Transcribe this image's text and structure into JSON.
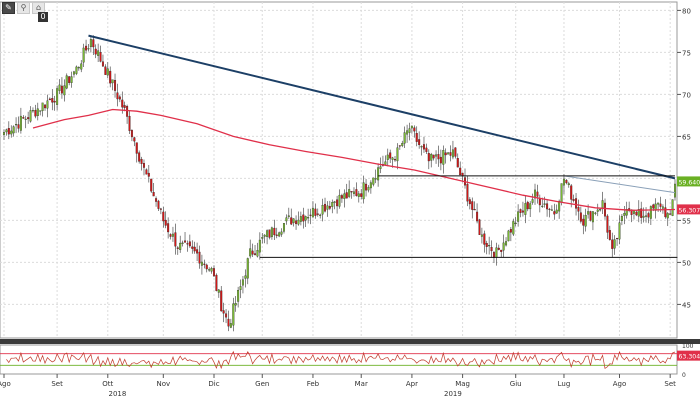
{
  "toolbar": {
    "buttons": [
      "pencil-icon",
      "wand-icon",
      "tag-icon"
    ],
    "zero_label": "0"
  },
  "chart_data": {
    "type": "candlestick",
    "title": "",
    "xlabel": "",
    "ylabel": "",
    "ylim": [
      41,
      81
    ],
    "yticks": [
      45,
      50,
      55,
      60,
      65,
      70,
      75,
      80
    ],
    "x_months": [
      {
        "label": "Ago",
        "idx": 0
      },
      {
        "label": "Set",
        "idx": 22
      },
      {
        "label": "Ott",
        "idx": 43
      },
      {
        "label": "Nov",
        "idx": 66
      },
      {
        "label": "Dic",
        "idx": 87
      },
      {
        "label": "Gen",
        "idx": 107
      },
      {
        "label": "Feb",
        "idx": 128
      },
      {
        "label": "Mar",
        "idx": 148
      },
      {
        "label": "Apr",
        "idx": 169
      },
      {
        "label": "Mag",
        "idx": 190
      },
      {
        "label": "Giu",
        "idx": 212
      },
      {
        "label": "Lug",
        "idx": 232
      },
      {
        "label": "Ago",
        "idx": 255
      },
      {
        "label": "Set",
        "idx": 276
      }
    ],
    "year_labels": [
      {
        "label": "2018",
        "idx": 47
      },
      {
        "label": "2019",
        "idx": 186
      }
    ],
    "n_bars": 279,
    "price_anchors": [
      [
        0,
        65.5
      ],
      [
        8,
        67
      ],
      [
        15,
        68.5
      ],
      [
        22,
        70
      ],
      [
        30,
        73
      ],
      [
        36,
        76.5
      ],
      [
        42,
        73
      ],
      [
        50,
        68
      ],
      [
        58,
        61
      ],
      [
        66,
        55
      ],
      [
        72,
        52
      ],
      [
        80,
        51
      ],
      [
        86,
        49
      ],
      [
        90,
        45
      ],
      [
        93,
        42.5
      ],
      [
        98,
        47
      ],
      [
        102,
        51
      ],
      [
        108,
        53
      ],
      [
        118,
        55
      ],
      [
        128,
        56
      ],
      [
        138,
        57.5
      ],
      [
        148,
        58.5
      ],
      [
        156,
        61.5
      ],
      [
        163,
        63
      ],
      [
        168,
        66
      ],
      [
        176,
        62
      ],
      [
        186,
        63
      ],
      [
        192,
        58
      ],
      [
        198,
        53
      ],
      [
        204,
        51
      ],
      [
        212,
        55
      ],
      [
        220,
        58
      ],
      [
        228,
        56
      ],
      [
        232,
        60
      ],
      [
        240,
        55
      ],
      [
        248,
        57
      ],
      [
        252,
        51
      ],
      [
        258,
        57
      ],
      [
        262,
        55.5
      ],
      [
        268,
        56
      ],
      [
        272,
        57
      ],
      [
        276,
        55
      ],
      [
        278,
        59.6
      ]
    ],
    "ma_anchors": [
      [
        12,
        66
      ],
      [
        25,
        67
      ],
      [
        35,
        67.5
      ],
      [
        45,
        68.2
      ],
      [
        55,
        68
      ],
      [
        65,
        67.5
      ],
      [
        80,
        66.5
      ],
      [
        95,
        65
      ],
      [
        110,
        64
      ],
      [
        125,
        63.2
      ],
      [
        140,
        62.5
      ],
      [
        155,
        61.7
      ],
      [
        170,
        61
      ],
      [
        185,
        60
      ],
      [
        200,
        59
      ],
      [
        215,
        58
      ],
      [
        230,
        57.2
      ],
      [
        245,
        56.5
      ],
      [
        260,
        56.2
      ],
      [
        278,
        56.3
      ]
    ],
    "lines": [
      {
        "name": "trendline-blue",
        "from": [
          35,
          77
        ],
        "to": [
          278,
          60
        ],
        "color": "#1c3f66"
      },
      {
        "name": "trendline-thin",
        "from": [
          232,
          60.3
        ],
        "to": [
          278,
          58.3
        ],
        "color": "#8aa0b8"
      },
      {
        "name": "horizontal-resistance",
        "from": [
          155,
          60.3
        ],
        "to": [
          278,
          60.3
        ],
        "color": "#111111"
      },
      {
        "name": "horizontal-support",
        "from": [
          106,
          50.6
        ],
        "to": [
          279,
          50.6
        ],
        "color": "#111111"
      }
    ],
    "price_tag": {
      "label": "59.6400",
      "value": 59.64,
      "color": "#6ab023"
    },
    "ma_tag": {
      "label": "56.3071",
      "value": 56.31,
      "color": "#e0304a"
    },
    "oscillator": {
      "ylim": [
        0,
        100
      ],
      "yticks": [
        100,
        0
      ],
      "upper_band": 70,
      "lower_band": 30,
      "last_label": "63.3043",
      "last_value": 63.3
    },
    "colors": {
      "up": "#7ab934",
      "down": "#d11818",
      "wick": "#333333",
      "ma": "#e0304a",
      "grid": "#dcdcdc"
    }
  }
}
